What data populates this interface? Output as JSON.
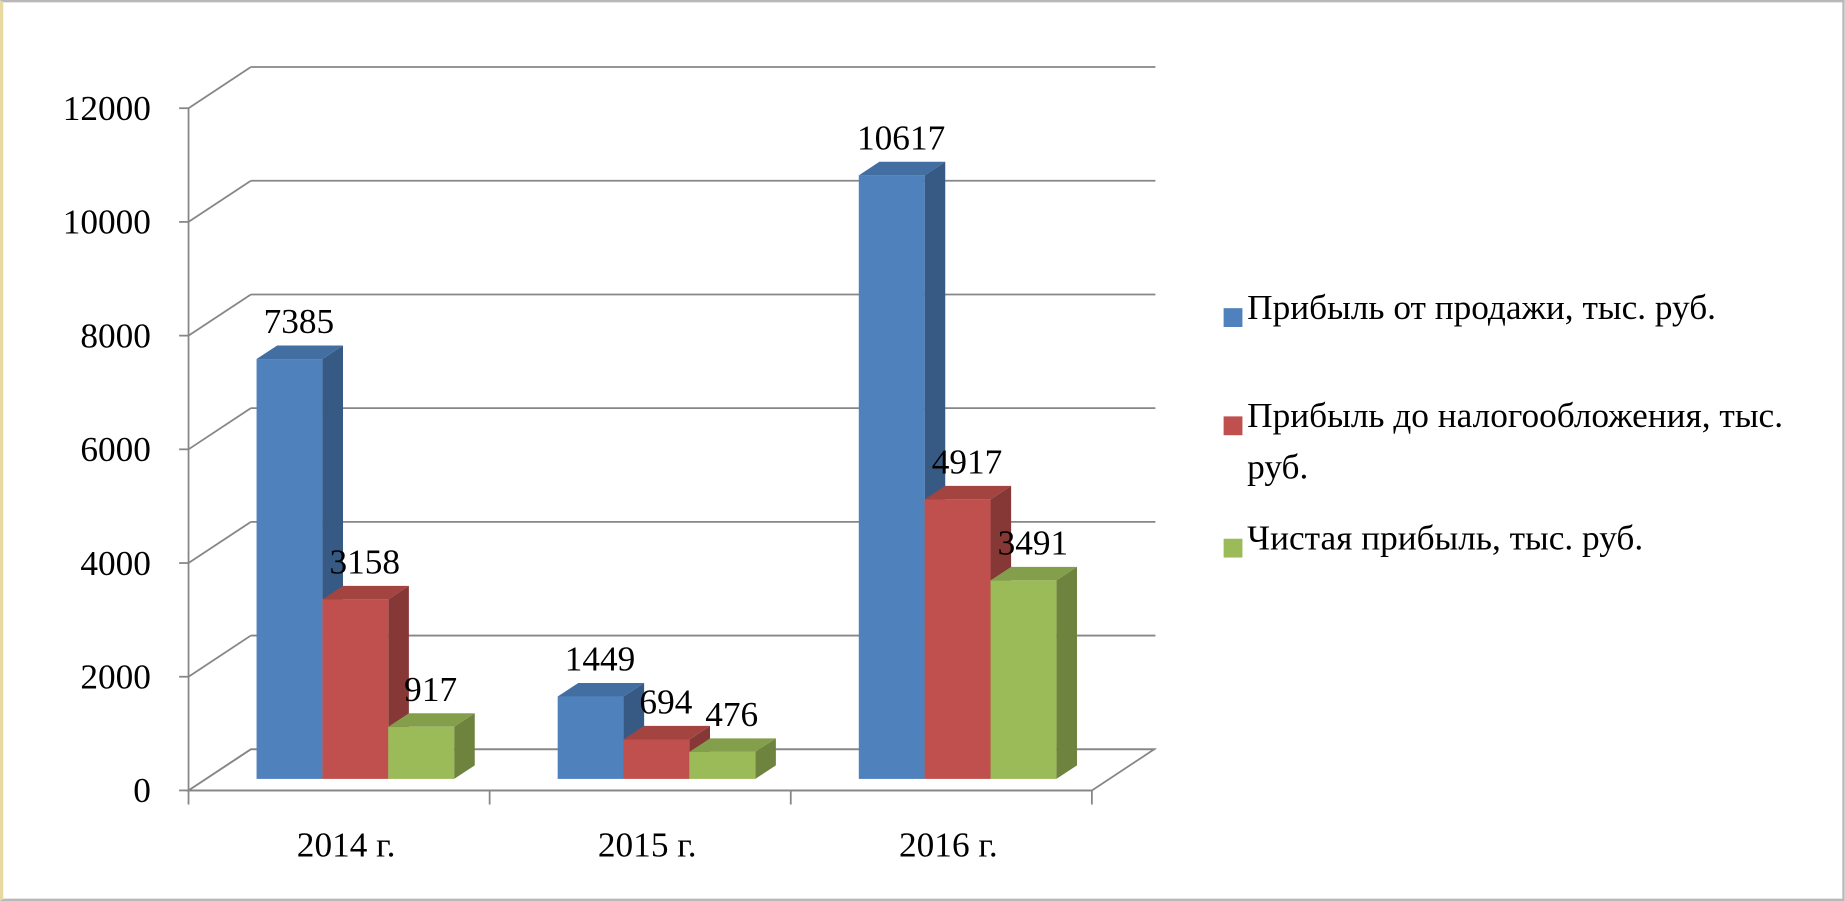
{
  "chart_data": {
    "type": "bar3d",
    "categories": [
      "2014 г.",
      "2015 г.",
      "2016 г."
    ],
    "series": [
      {
        "name": "Прибыль от продажи, тыс. руб.",
        "color": "#4f81bd",
        "values": [
          7385,
          1449,
          10617
        ]
      },
      {
        "name": "Прибыль до налогообложения, тыс. руб.",
        "color": "#c0504d",
        "values": [
          3158,
          694,
          4917
        ]
      },
      {
        "name": "Чистая прибыль, тыс. руб.",
        "color": "#9bbb59",
        "values": [
          917,
          476,
          3491
        ]
      }
    ],
    "ylim": [
      0,
      12000
    ],
    "yticks": [
      0,
      2000,
      4000,
      6000,
      8000,
      10000,
      12000
    ],
    "grid": true,
    "legend": "right"
  }
}
